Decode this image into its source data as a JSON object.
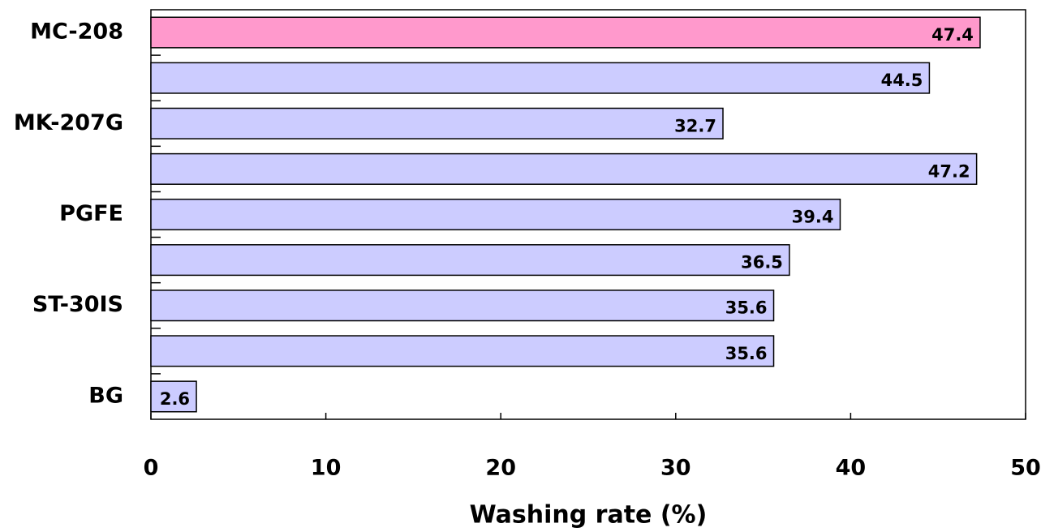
{
  "chart_data": {
    "type": "bar",
    "orientation": "horizontal",
    "x_label": "Washing rate (%)",
    "categories": [
      "MC-208",
      null,
      "MK-207G",
      null,
      "PGFE",
      null,
      "ST-30IS",
      null,
      "BG"
    ],
    "values": [
      47.4,
      44.5,
      32.7,
      47.2,
      39.4,
      36.5,
      35.6,
      35.6,
      2.6
    ],
    "colors": [
      "#ff99cc",
      "#ccccff",
      "#ccccff",
      "#ccccff",
      "#ccccff",
      "#ccccff",
      "#ccccff",
      "#ccccff",
      "#ccccff"
    ],
    "xlim": [
      0,
      50
    ],
    "xticks": [
      0,
      10,
      20,
      30,
      40,
      50
    ]
  }
}
